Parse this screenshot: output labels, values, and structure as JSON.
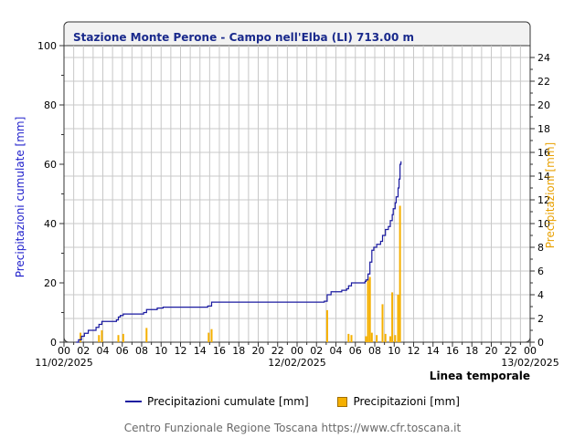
{
  "chart_data": {
    "type": "bar+line",
    "title": "Stazione Monte Perone - Campo nell'Elba (LI) 713.00 m",
    "ylabel_left": "Precipitazioni cumulate [mm]",
    "ylabel_right": "Precipitazioni [mm]",
    "xlabel": "Linea temporale",
    "ylim_left": [
      0,
      100
    ],
    "ylim_right": [
      0,
      25
    ],
    "yticks_left": [
      "0",
      "20",
      "40",
      "60",
      "80",
      "100"
    ],
    "yticks_right": [
      "0",
      "2",
      "4",
      "6",
      "8",
      "10",
      "12",
      "14",
      "16",
      "18",
      "20",
      "22",
      "24"
    ],
    "xlim_hours": [
      0,
      48
    ],
    "xtick_labels": [
      "00",
      "02",
      "04",
      "06",
      "08",
      "10",
      "12",
      "14",
      "16",
      "18",
      "20",
      "22",
      "00",
      "02",
      "04",
      "06",
      "08",
      "10",
      "12",
      "14",
      "16",
      "18",
      "20",
      "22",
      "00"
    ],
    "date_labels": [
      {
        "hour": 0,
        "text": "11/02/2025"
      },
      {
        "hour": 24,
        "text": "12/02/2025"
      },
      {
        "hour": 48,
        "text": "13/02/2025"
      }
    ],
    "grid": true,
    "series": [
      {
        "name": "Precipitazioni cumulate [mm]",
        "type": "step-line",
        "color": "#1a1aa0",
        "axis": "left",
        "points": [
          [
            1.25,
            0
          ],
          [
            1.5,
            0.8
          ],
          [
            1.8,
            2
          ],
          [
            2.1,
            3
          ],
          [
            2.5,
            4
          ],
          [
            3.3,
            5
          ],
          [
            3.6,
            6
          ],
          [
            3.9,
            7
          ],
          [
            5.4,
            7.5
          ],
          [
            5.6,
            8.5
          ],
          [
            5.8,
            9
          ],
          [
            6.1,
            9.5
          ],
          [
            8.2,
            10
          ],
          [
            8.5,
            11
          ],
          [
            9.6,
            11.5
          ],
          [
            10.2,
            11.8
          ],
          [
            14.8,
            12.2
          ],
          [
            15.2,
            13.5
          ],
          [
            26.8,
            13.8
          ],
          [
            27.1,
            16
          ],
          [
            27.5,
            17
          ],
          [
            28.6,
            17.5
          ],
          [
            29.1,
            18
          ],
          [
            29.3,
            19
          ],
          [
            29.6,
            20
          ],
          [
            31.0,
            20.5
          ],
          [
            31.1,
            21
          ],
          [
            31.3,
            23
          ],
          [
            31.5,
            27
          ],
          [
            31.7,
            31
          ],
          [
            31.9,
            32
          ],
          [
            32.2,
            33
          ],
          [
            32.6,
            34
          ],
          [
            32.8,
            36
          ],
          [
            33.1,
            38
          ],
          [
            33.4,
            39
          ],
          [
            33.6,
            41
          ],
          [
            33.8,
            43
          ],
          [
            33.9,
            45
          ],
          [
            34.1,
            47
          ],
          [
            34.2,
            49
          ],
          [
            34.4,
            52
          ],
          [
            34.5,
            55
          ],
          [
            34.6,
            60
          ],
          [
            34.7,
            61
          ]
        ]
      },
      {
        "name": "Precipitazioni [mm]",
        "type": "bar",
        "color": "#f5b000",
        "axis": "right",
        "bars": [
          [
            1.7,
            0.8
          ],
          [
            3.6,
            0.6
          ],
          [
            3.9,
            1.0
          ],
          [
            5.6,
            0.6
          ],
          [
            6.1,
            0.7
          ],
          [
            8.5,
            1.2
          ],
          [
            14.9,
            0.8
          ],
          [
            15.2,
            1.1
          ],
          [
            27.1,
            2.7
          ],
          [
            29.3,
            0.7
          ],
          [
            29.6,
            0.6
          ],
          [
            31.1,
            0.5
          ],
          [
            31.3,
            5.3
          ],
          [
            31.5,
            5.5
          ],
          [
            31.7,
            0.8
          ],
          [
            32.2,
            0.6
          ],
          [
            32.8,
            3.2
          ],
          [
            33.1,
            0.7
          ],
          [
            33.6,
            0.5
          ],
          [
            33.8,
            4.2
          ],
          [
            34.1,
            0.6
          ],
          [
            34.4,
            4.0
          ],
          [
            34.6,
            11.5
          ]
        ]
      }
    ]
  },
  "legend": {
    "line_label": "Precipitazioni cumulate [mm]",
    "bar_label": "Precipitazioni [mm]"
  },
  "footer": "Centro Funzionale Regione Toscana https://www.cfr.toscana.it"
}
